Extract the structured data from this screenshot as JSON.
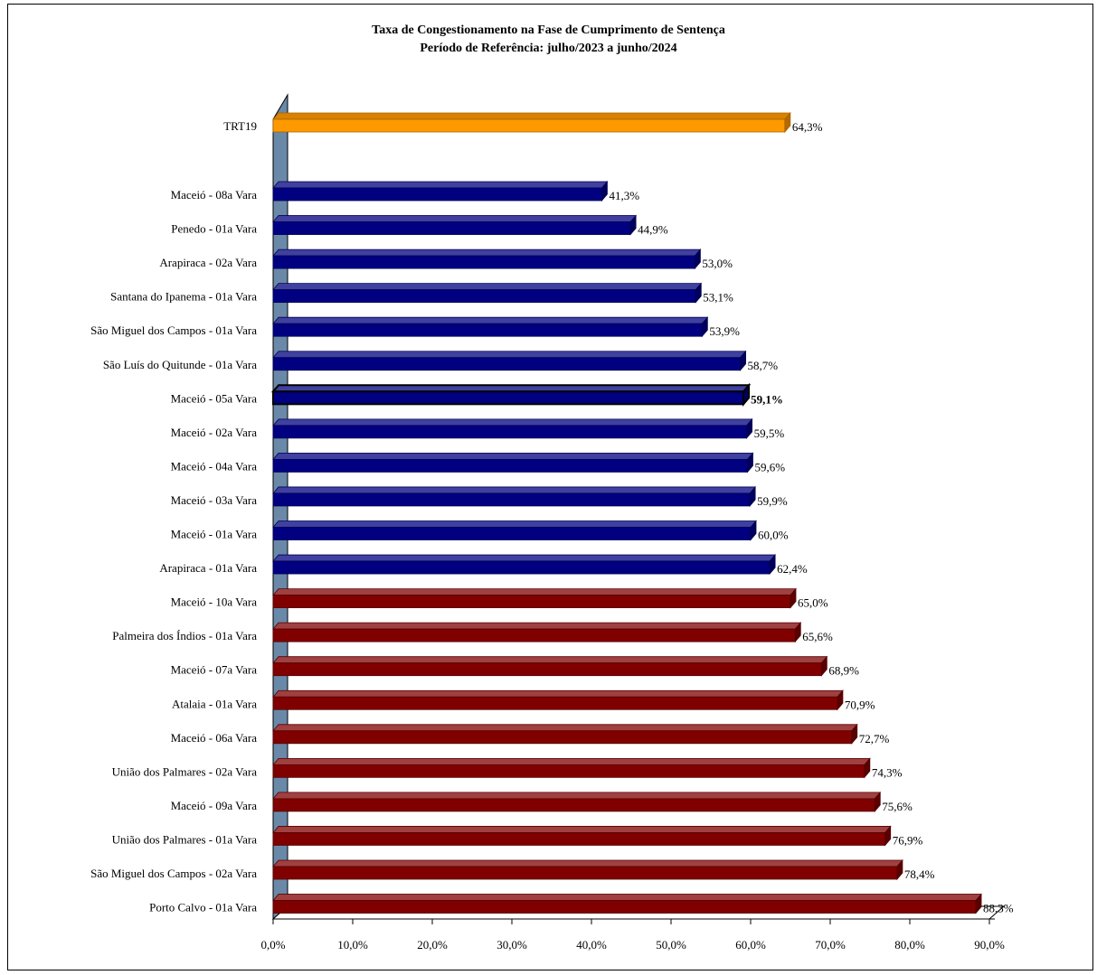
{
  "chart_data": {
    "type": "bar",
    "orientation": "horizontal",
    "title": "Taxa de Congestionamento na Fase de Cumprimento  de Sentença",
    "subtitle": "Período de Referência: julho/2023 a junho/2024",
    "categories": [
      "TRT19",
      "Maceió  - 08a Vara",
      "Penedo  - 01a Vara",
      "Arapiraca  - 02a Vara",
      "Santana do Ipanema  - 01a Vara",
      "São Miguel dos Campos  - 01a Vara",
      "São Luís do Quitunde  - 01a Vara",
      "Maceió  - 05a Vara",
      "Maceió  - 02a Vara",
      "Maceió  - 04a Vara",
      "Maceió  - 03a Vara",
      "Maceió  - 01a Vara",
      "Arapiraca  - 01a Vara",
      "Maceió  - 10a Vara",
      "Palmeira dos Índios  - 01a Vara",
      "Maceió  - 07a Vara",
      "Atalaia  - 01a Vara",
      "Maceió  - 06a Vara",
      "União dos Palmares  - 02a Vara",
      "Maceió  - 09a Vara",
      "União dos Palmares  - 01a Vara",
      "São Miguel dos Campos  - 02a Vara",
      "Porto Calvo  - 01a Vara"
    ],
    "values": [
      64.3,
      41.3,
      44.9,
      53.0,
      53.1,
      53.9,
      58.7,
      59.1,
      59.5,
      59.6,
      59.9,
      60.0,
      62.4,
      65.0,
      65.6,
      68.9,
      70.9,
      72.7,
      74.3,
      75.6,
      76.9,
      78.4,
      88.3
    ],
    "value_labels": [
      "64,3%",
      "41,3%",
      "44,9%",
      "53,0%",
      "53,1%",
      "53,9%",
      "58,7%",
      "59,1%",
      "59,5%",
      "59,6%",
      "59,9%",
      "60,0%",
      "62,4%",
      "65,0%",
      "65,6%",
      "68,9%",
      "70,9%",
      "72,7%",
      "74,3%",
      "75,6%",
      "76,9%",
      "78,4%",
      "88,3%"
    ],
    "bar_groups": [
      "total",
      "below",
      "below",
      "below",
      "below",
      "below",
      "below",
      "highlight",
      "below",
      "below",
      "below",
      "below",
      "below",
      "above",
      "above",
      "above",
      "above",
      "above",
      "above",
      "above",
      "above",
      "above",
      "above"
    ],
    "group_colors": {
      "total": "#FF9900",
      "below": "#000080",
      "highlight": "#000080",
      "above": "#800000",
      "wall": "#6A89A8"
    },
    "xlim": [
      0,
      90
    ],
    "xticks": [
      0,
      10,
      20,
      30,
      40,
      50,
      60,
      70,
      80,
      90
    ],
    "xtick_labels": [
      "0,0%",
      "10,0%",
      "20,0%",
      "30,0%",
      "40,0%",
      "50,0%",
      "60,0%",
      "70,0%",
      "80,0%",
      "90,0%"
    ],
    "grid": false,
    "legend": "none",
    "style": "3d"
  }
}
